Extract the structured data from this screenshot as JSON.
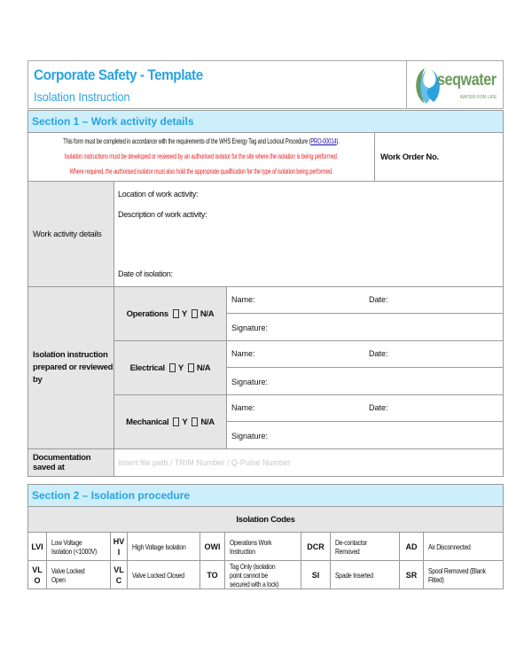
{
  "header": {
    "title": "Corporate Safety - Template",
    "subtitle": "Isolation Instruction",
    "logo": {
      "name": "seqwater",
      "tagline": "WATER FOR LIFE"
    }
  },
  "section1": {
    "title": "Section 1 – Work activity details",
    "intro": {
      "line1_pre": "This form must be completed in accordance with the requirements of the WHS Energy Tag and Lockout Procedure (",
      "line1_link": "PRO-00014",
      "line1_post": ").",
      "line2": "Isolation instructions must be developed or reviewed by an authorised isolator for the site where the isolation is being performed.",
      "line3": "Where required, the authorised isolator must also hold the appropriate qualification for the type of isolation being performed."
    },
    "work_order_label": "Work Order No.",
    "work_activity": {
      "label": "Work activity details",
      "location": "Location of work activity:",
      "description": "Description of work activity:",
      "date": "Date of isolation:"
    },
    "isolation": {
      "label": "Isolation instruction prepared or reviewed by",
      "rows": [
        {
          "role": "Operations",
          "y": "Y",
          "na": "N/A",
          "name": "Name:",
          "date": "Date:",
          "signature": "Signature:"
        },
        {
          "role": "Electrical",
          "y": "Y",
          "na": "N/A",
          "name": "Name:",
          "date": "Date:",
          "signature": "Signature:"
        },
        {
          "role": "Mechanical",
          "y": "Y",
          "na": "N/A",
          "name": "Name:",
          "date": "Date:",
          "signature": "Signature:"
        }
      ]
    },
    "documentation": {
      "label": "Documentation saved at",
      "placeholder": "Insert file path / TRIM Number / Q-Pulse Number"
    }
  },
  "section2": {
    "title": "Section 2 – Isolation procedure",
    "codes_title": "Isolation Codes",
    "codes": [
      [
        [
          "LVI",
          "Low Voltage Isolation (<1000V)"
        ],
        [
          "HVI",
          "High Voltage Isolation"
        ],
        [
          "OWI",
          "Operations Work Instruction"
        ],
        [
          "DCR",
          "De-contactor Removed"
        ],
        [
          "AD",
          "Air Disconnected"
        ]
      ],
      [
        [
          "VLO",
          "Valve Locked Open"
        ],
        [
          "VLC",
          "Valve Locked Closed"
        ],
        [
          "TO",
          "Tag Only (isolation point cannot be secured with a lock)"
        ],
        [
          "SI",
          "Spade Inserted"
        ],
        [
          "SR",
          "Spool Removed (Blank Fitted)"
        ]
      ]
    ]
  },
  "colors": {
    "accent": "#29a3e0",
    "section_bg": "#cdeffb",
    "warning": "#e8262b",
    "logo_green": "#6a9a5a"
  }
}
